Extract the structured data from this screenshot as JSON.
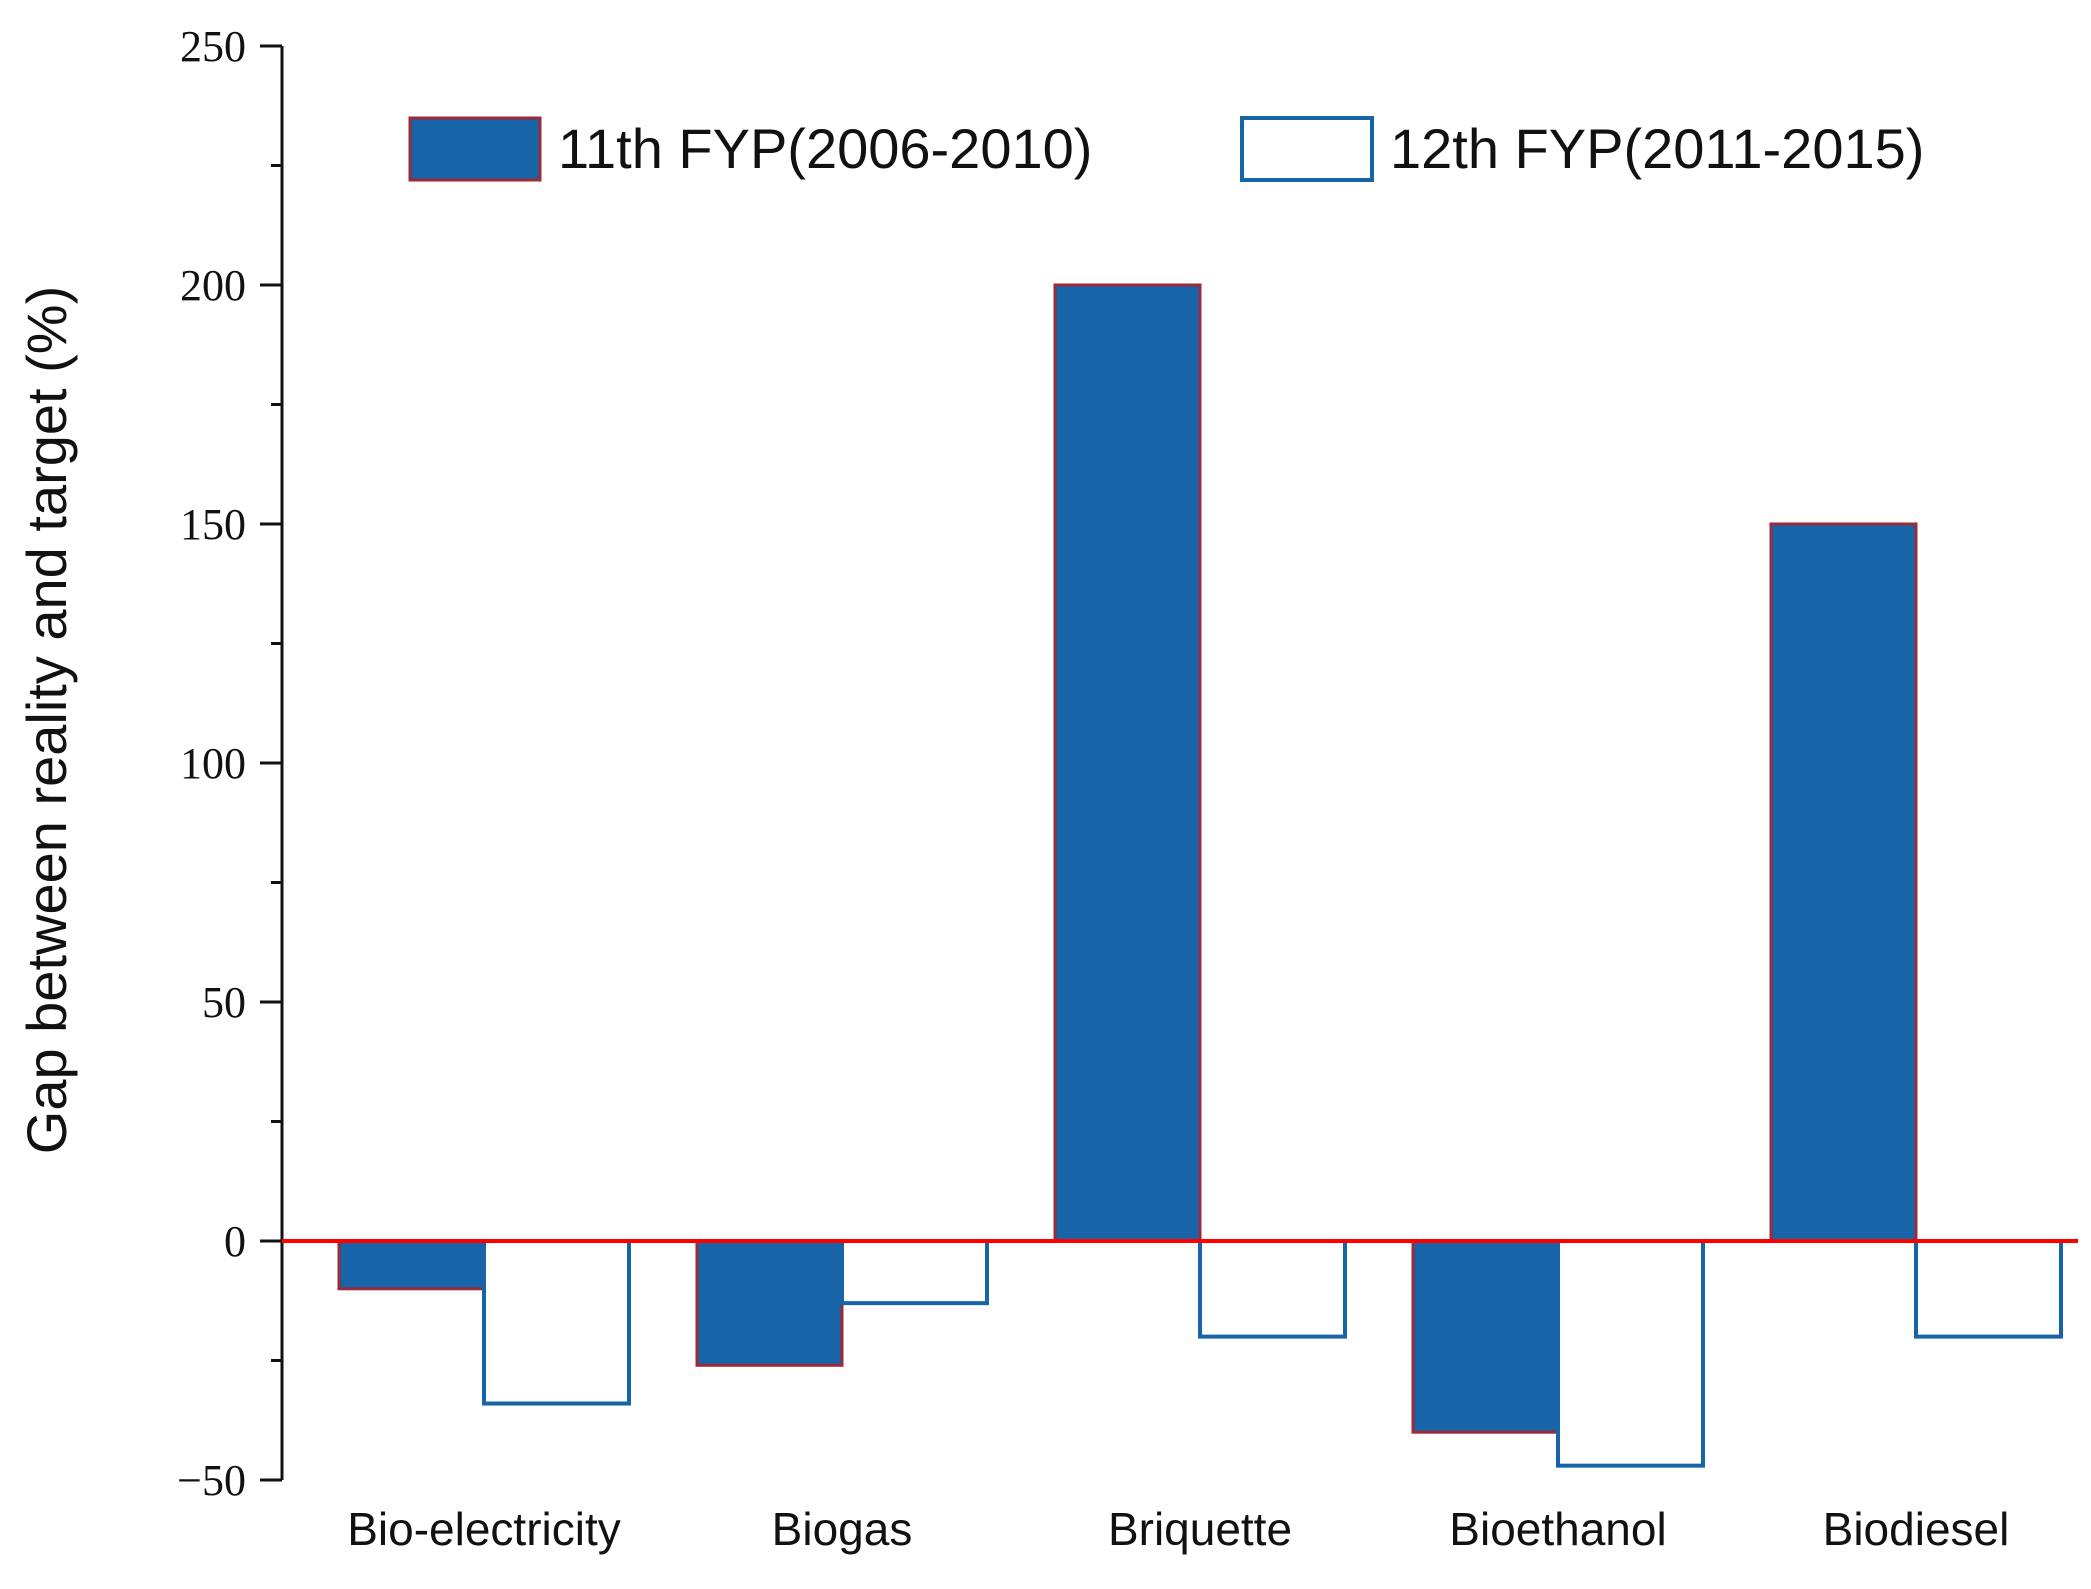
{
  "chart_data": {
    "type": "bar",
    "title": "",
    "xlabel": "",
    "ylabel": "Gap between reality and target (%)",
    "ylim": [
      -50,
      250
    ],
    "yticks": [
      -50,
      0,
      50,
      100,
      150,
      200,
      250
    ],
    "ytick_labels": [
      "−50",
      "0",
      "50",
      "100",
      "150",
      "200",
      "250"
    ],
    "categories": [
      "Bio-electricity",
      "Biogas",
      "Briquette",
      "Bioethanol",
      "Biodiesel"
    ],
    "series": [
      {
        "name": "11th FYP(2006-2010)",
        "values": [
          -10,
          -26,
          200,
          -40,
          150
        ],
        "fill": "#1764a8",
        "stroke": "#9c2a3a"
      },
      {
        "name": "12th FYP(2011-2015)",
        "values": [
          -34,
          -13,
          -20,
          -47,
          -20
        ],
        "fill": "#ffffff",
        "stroke": "#1764a8"
      }
    ],
    "reference_line": {
      "value": 0,
      "color": "#ff0000"
    },
    "legend_position": "top",
    "grid": false
  }
}
